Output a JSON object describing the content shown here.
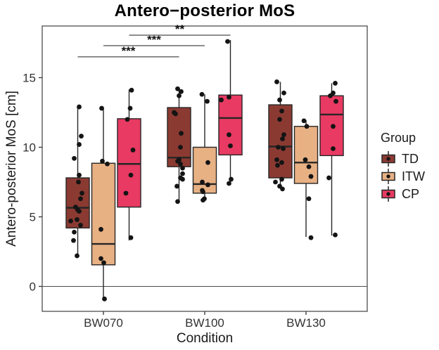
{
  "chart_data": {
    "type": "boxplot",
    "title": "Antero−posterior MoS",
    "xlabel": "Condition",
    "ylabel": "Antero-posterior MoS [cm]",
    "legend_title": "Group",
    "legend_position": "right",
    "grid": false,
    "categories": [
      "BW070",
      "BW100",
      "BW130"
    ],
    "yticks": [
      0,
      5,
      10,
      15
    ],
    "ylim": [
      -1.8,
      18.7
    ],
    "zero_line": 0,
    "point_color": "#141414",
    "sig_line_color": "#757575",
    "groups": [
      {
        "name": "TD",
        "color": "#8B3A32",
        "boxes": [
          {
            "condition": "BW070",
            "whisker_low": 2.2,
            "q1": 4.2,
            "median": 5.65,
            "q3": 7.8,
            "whisker_high": 12.9,
            "points": [
              [
                12.9,
                2
              ],
              [
                10.8,
                5
              ],
              [
                10.2,
                2
              ],
              [
                9.2,
                -5
              ],
              [
                8.0,
                2
              ],
              [
                7.5,
                1
              ],
              [
                6.7,
                6
              ],
              [
                6.3,
                4
              ],
              [
                5.7,
                -3
              ],
              [
                5.5,
                0
              ],
              [
                5.4,
                2
              ],
              [
                4.8,
                -1
              ],
              [
                4.7,
                -10
              ],
              [
                4.4,
                4
              ],
              [
                3.9,
                -5
              ],
              [
                3.3,
                -6
              ],
              [
                2.2,
                -1
              ]
            ]
          },
          {
            "condition": "BW100",
            "whisker_low": 6.05,
            "q1": 8.6,
            "median": 9.25,
            "q3": 12.85,
            "whisker_high": 14.25,
            "points": [
              [
                14.2,
                -2
              ],
              [
                14.0,
                3
              ],
              [
                13.7,
                0
              ],
              [
                12.5,
                -7
              ],
              [
                12.4,
                -5
              ],
              [
                11.0,
                3
              ],
              [
                10.0,
                2
              ],
              [
                9.1,
                0
              ],
              [
                9.0,
                -2
              ],
              [
                8.8,
                2
              ],
              [
                8.5,
                5
              ],
              [
                8.1,
                5
              ],
              [
                7.8,
                2
              ],
              [
                7.7,
                5
              ],
              [
                7.2,
                -3
              ],
              [
                6.1,
                -2
              ]
            ]
          },
          {
            "condition": "BW130",
            "whisker_low": 7.3,
            "q1": 7.8,
            "median": 10.05,
            "q3": 13.05,
            "whisker_high": 14.7,
            "points": [
              [
                14.7,
                -5
              ],
              [
                13.9,
                5
              ],
              [
                13.4,
                -1
              ],
              [
                12.6,
                2
              ],
              [
                12.0,
                -1
              ],
              [
                10.9,
                5
              ],
              [
                10.6,
                3
              ],
              [
                10.0,
                -3
              ],
              [
                9.9,
                4
              ],
              [
                9.1,
                -5
              ],
              [
                8.9,
                2
              ],
              [
                8.7,
                -4
              ],
              [
                7.7,
                2
              ],
              [
                7.5,
                -7
              ],
              [
                7.2,
                -1
              ],
              [
                7.0,
                3
              ]
            ]
          }
        ]
      },
      {
        "name": "ITW",
        "color": "#E8B184",
        "boxes": [
          {
            "condition": "BW070",
            "whisker_low": -0.9,
            "q1": 1.55,
            "median": 3.05,
            "q3": 8.85,
            "whisker_high": 12.85,
            "points": [
              [
                12.8,
                -2.5
              ],
              [
                9.0,
                -1.5
              ],
              [
                8.8,
                5.5
              ],
              [
                4.1,
                -3.5
              ],
              [
                2.0,
                -3.5
              ],
              [
                1.7,
                0.5
              ],
              [
                -0.9,
                1.5
              ]
            ]
          },
          {
            "condition": "BW100",
            "whisker_low": 6.1,
            "q1": 6.7,
            "median": 7.35,
            "q3": 10.0,
            "whisker_high": 13.8,
            "points": [
              [
                13.8,
                -4
              ],
              [
                13.3,
                3.5
              ],
              [
                8.9,
                4.5
              ],
              [
                7.5,
                -3.5
              ],
              [
                7.3,
                4.5
              ],
              [
                6.9,
                -3.5
              ],
              [
                6.8,
                -2.5
              ],
              [
                6.3,
                -0.5
              ],
              [
                6.2,
                -2.5
              ]
            ]
          },
          {
            "condition": "BW130",
            "whisker_low": 3.55,
            "q1": 7.4,
            "median": 8.9,
            "q3": 11.5,
            "whisker_high": 11.95,
            "points": [
              [
                11.9,
                -3
              ],
              [
                11.5,
                1
              ],
              [
                9.1,
                -1
              ],
              [
                8.6,
                4
              ],
              [
                7.9,
                7
              ],
              [
                6.3,
                4
              ],
              [
                3.5,
                7
              ]
            ]
          }
        ]
      },
      {
        "name": "CP",
        "color": "#E83A62",
        "boxes": [
          {
            "condition": "BW070",
            "whisker_low": 3.3,
            "q1": 5.7,
            "median": 8.8,
            "q3": 12.05,
            "whisker_high": 14.15,
            "points": [
              [
                14.1,
                3.5
              ],
              [
                12.8,
                1.5
              ],
              [
                12.0,
                -2.5
              ],
              [
                9.8,
                5.5
              ],
              [
                8.0,
                2.5
              ],
              [
                6.7,
                -4.5
              ],
              [
                3.5,
                2.5
              ]
            ]
          },
          {
            "condition": "BW100",
            "whisker_low": 7.45,
            "q1": 9.45,
            "median": 12.1,
            "q3": 13.75,
            "whisker_high": 17.7,
            "points": [
              [
                17.6,
                -4
              ],
              [
                13.6,
                -2
              ],
              [
                13.4,
                -13
              ],
              [
                10.9,
                -2
              ],
              [
                10.1,
                0
              ],
              [
                7.7,
                1
              ],
              [
                7.4,
                -2
              ]
            ]
          },
          {
            "condition": "BW130",
            "whisker_low": 3.65,
            "q1": 9.4,
            "median": 12.35,
            "q3": 13.7,
            "whisker_high": 14.6,
            "points": [
              [
                14.6,
                5
              ],
              [
                13.9,
                2
              ],
              [
                13.7,
                -2
              ],
              [
                13.3,
                6
              ],
              [
                11.5,
                2
              ],
              [
                9.9,
                2
              ],
              [
                7.8,
                -4
              ],
              [
                3.7,
                5
              ]
            ]
          }
        ]
      }
    ],
    "significance": [
      {
        "label": "***",
        "group": "TD",
        "from": "BW070",
        "to": "BW100",
        "y": 16.5
      },
      {
        "label": "***",
        "group": "ITW",
        "from": "BW070",
        "to": "BW100",
        "y": 17.3
      },
      {
        "label": "**",
        "group": "CP",
        "from": "BW070",
        "to": "BW100",
        "y": 18.05
      }
    ]
  }
}
